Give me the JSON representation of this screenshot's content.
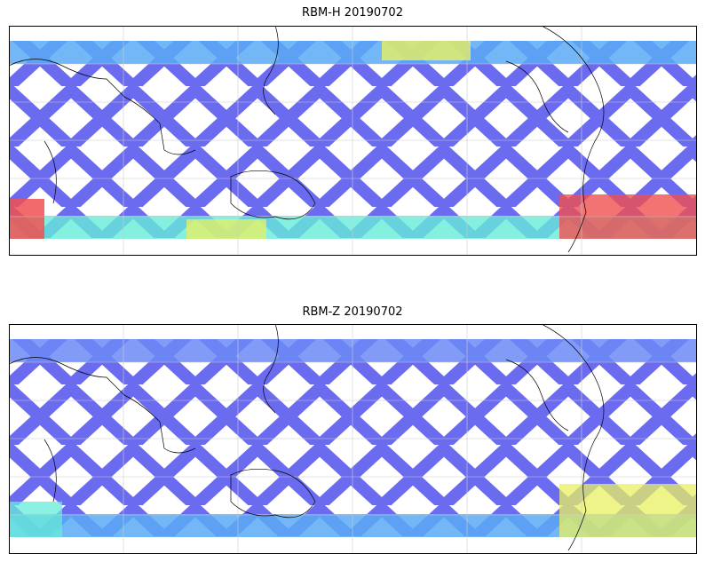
{
  "panels": [
    {
      "title": "RBM-H 20190702",
      "highlights": [
        {
          "region": "southern high latitudes west",
          "level": "high",
          "color": "#f05050"
        },
        {
          "region": "southern high latitudes east",
          "level": "high",
          "color": "#f05050"
        },
        {
          "region": "north Atlantic band",
          "level": "medium",
          "color": "#f0e040"
        },
        {
          "region": "southern ocean band",
          "level": "medium",
          "color": "#d8f060"
        }
      ]
    },
    {
      "title": "RBM-Z 20190702",
      "highlights": [
        {
          "region": "south Atlantic band",
          "level": "medium",
          "color": "#e8f060"
        },
        {
          "region": "southern ocean band",
          "level": "low-medium",
          "color": "#70e8d0"
        }
      ]
    }
  ],
  "colors": {
    "low": "#6b6bf0",
    "mid_low": "#5aaaf5",
    "mid": "#66ecd8",
    "mid_high": "#e8f060",
    "high": "#f05050",
    "coast": "#000000",
    "grid": "#cccccc"
  },
  "icons": [
    "coastline-outline",
    "lat-lon-gridlines"
  ]
}
